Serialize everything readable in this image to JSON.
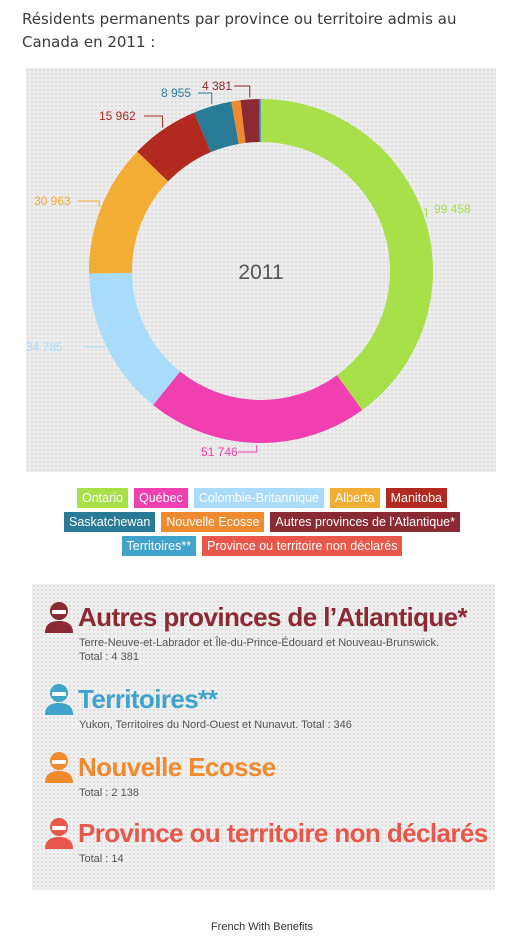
{
  "title": "Résidents permanents par province ou territoire admis au Canada en 2011 :",
  "chart_data": {
    "type": "pie",
    "style": "donut",
    "center_label": "2011",
    "slices": [
      {
        "name": "Ontario",
        "value": 99458,
        "label": "99 458",
        "color": "#a8e04a"
      },
      {
        "name": "Québec",
        "value": 51746,
        "label": "51 746",
        "color": "#f03fae"
      },
      {
        "name": "Colombie-Britannique",
        "value": 34785,
        "label": "34 785",
        "color": "#a9dcfb"
      },
      {
        "name": "Alberta",
        "value": 30963,
        "label": "30 963",
        "color": "#f2ad35"
      },
      {
        "name": "Manitoba",
        "value": 15962,
        "label": "15 962",
        "color": "#b1291f"
      },
      {
        "name": "Saskatchewan",
        "value": 8955,
        "label": "8 955",
        "color": "#297a96"
      },
      {
        "name": "Nouvelle Ecosse",
        "value": 2138,
        "label": "",
        "color": "#ef8a2f"
      },
      {
        "name": "Autres provinces de l'Atlantique*",
        "value": 4381,
        "label": "4 381",
        "color": "#8c2a33"
      },
      {
        "name": "Territoires**",
        "value": 346,
        "label": "",
        "color": "#3fa3cc"
      },
      {
        "name": "Province ou territoire non déclarés",
        "value": 14,
        "label": "",
        "color": "#e9574a"
      }
    ],
    "legend_rows": [
      [
        0,
        1,
        2,
        3,
        4
      ],
      [
        5,
        6,
        7
      ],
      [
        8,
        9
      ]
    ],
    "legend_placement": "bottom"
  },
  "notes": [
    {
      "heading": "Autres provinces de l’Atlantique*",
      "color": "#8c2a33",
      "icon": "person-icon",
      "lines": [
        "Terre-Neuve-et-Labrador et Île-du-Prince-Édouard et Nouveau-Brunswick.",
        "Total : 4 381"
      ]
    },
    {
      "heading": "Territoires**",
      "color": "#3fa3cc",
      "icon": "person-icon",
      "lines": [
        "Yukon, Territoires du Nord-Ouest et Nunavut. Total : 346"
      ]
    },
    {
      "heading": "Nouvelle Ecosse",
      "color": "#ef8a2f",
      "icon": "person-icon",
      "lines": [
        "Total : 2 138"
      ]
    },
    {
      "heading": "Province ou territoire non déclarés",
      "color": "#e9574a",
      "icon": "person-icon",
      "lines": [
        "Total : 14"
      ]
    }
  ],
  "footer": "French With Benefits"
}
